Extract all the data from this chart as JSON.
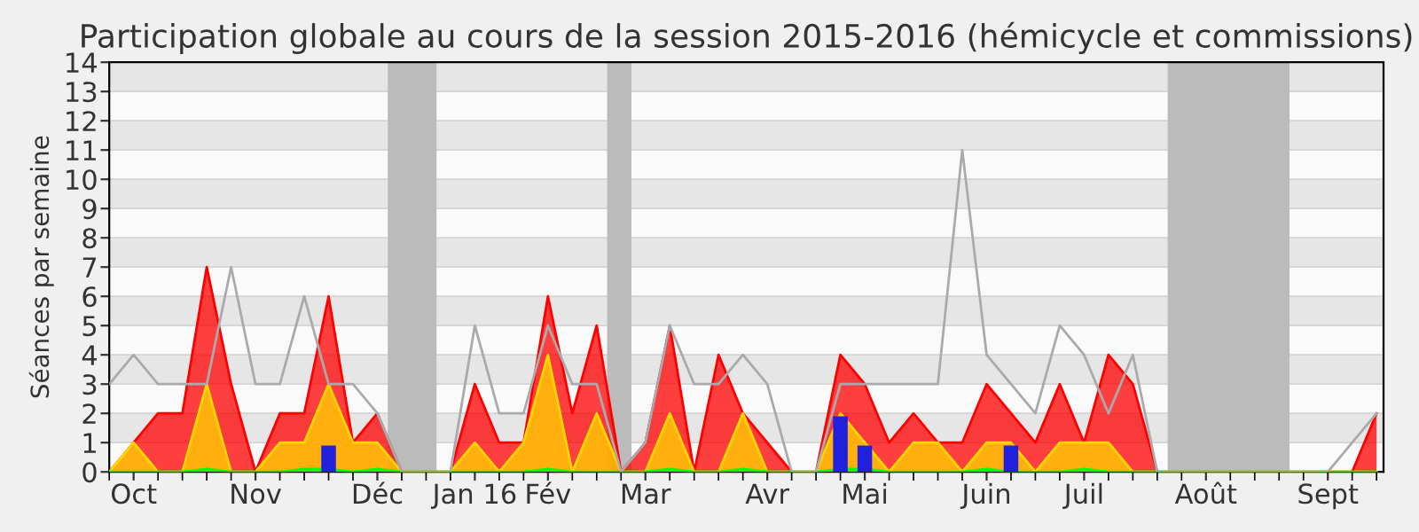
{
  "chart_data": {
    "type": "area",
    "title": "Participation globale au cours de la session 2015-2016 (hémicycle et commissions)",
    "ylabel": "Séances par semaine",
    "x": [
      "2015-10-01",
      "2015-10-08",
      "2015-10-15",
      "2015-10-22",
      "2015-10-29",
      "2015-11-05",
      "2015-11-12",
      "2015-11-19",
      "2015-11-26",
      "2015-12-03",
      "2015-12-10",
      "2015-12-17",
      "2015-12-24",
      "2015-12-31",
      "2016-01-07",
      "2016-01-14",
      "2016-01-21",
      "2016-01-28",
      "2016-02-04",
      "2016-02-11",
      "2016-02-18",
      "2016-02-25",
      "2016-03-03",
      "2016-03-10",
      "2016-03-17",
      "2016-03-24",
      "2016-03-31",
      "2016-04-07",
      "2016-04-14",
      "2016-04-21",
      "2016-04-28",
      "2016-05-05",
      "2016-05-12",
      "2016-05-19",
      "2016-05-26",
      "2016-06-02",
      "2016-06-09",
      "2016-06-16",
      "2016-06-23",
      "2016-06-30",
      "2016-07-07",
      "2016-07-14",
      "2016-07-21",
      "2016-07-28",
      "2016-08-04",
      "2016-08-11",
      "2016-08-18",
      "2016-08-25",
      "2016-09-01",
      "2016-09-08",
      "2016-09-15",
      "2016-09-22",
      "2016-09-29"
    ],
    "xlim": [
      "2015-10-01",
      "2016-10-01"
    ],
    "xticks": [
      {
        "value": "2015-10-08",
        "label": "Oct"
      },
      {
        "value": "2015-11-12",
        "label": "Nov"
      },
      {
        "value": "2015-12-17",
        "label": "Déc"
      },
      {
        "value": "2016-01-14",
        "label": "Jan 16"
      },
      {
        "value": "2016-02-04",
        "label": "Fév"
      },
      {
        "value": "2016-03-03",
        "label": "Mar"
      },
      {
        "value": "2016-04-07",
        "label": "Avr"
      },
      {
        "value": "2016-05-05",
        "label": "Mai"
      },
      {
        "value": "2016-06-09",
        "label": "Juin"
      },
      {
        "value": "2016-07-07",
        "label": "Juil"
      },
      {
        "value": "2016-08-11",
        "label": "Août"
      },
      {
        "value": "2016-09-15",
        "label": "Sept"
      }
    ],
    "ylim": [
      0,
      14
    ],
    "yticks": [
      0,
      1,
      2,
      3,
      4,
      5,
      6,
      7,
      8,
      9,
      10,
      11,
      12,
      13,
      14
    ],
    "grid": "y",
    "bands": [
      {
        "axis": "x",
        "from": "2015-12-20",
        "to": "2016-01-03",
        "color": "#bbbbbb"
      },
      {
        "axis": "x",
        "from": "2016-02-21",
        "to": "2016-02-28",
        "color": "#bbbbbb"
      },
      {
        "axis": "x",
        "from": "2016-07-31",
        "to": "2016-09-04",
        "color": "#bbbbbb"
      }
    ],
    "series": [
      {
        "color": "#ff0000",
        "values": [
          0,
          1,
          2,
          2,
          7,
          3,
          0,
          2,
          2,
          6,
          1,
          2,
          0,
          0,
          0,
          3,
          1,
          1,
          6,
          2,
          5,
          0,
          1,
          5,
          0,
          4,
          2,
          1,
          0,
          0,
          4,
          3,
          1,
          2,
          1,
          1,
          3,
          2,
          1,
          3,
          1,
          4,
          3,
          0,
          0,
          0,
          0,
          0,
          0,
          0,
          0,
          0,
          2
        ]
      },
      {
        "color": "#ffd700",
        "values": [
          0,
          1,
          0,
          0,
          3,
          0,
          0,
          1,
          1,
          3,
          1,
          1,
          0,
          0,
          0,
          1,
          0,
          1,
          4,
          0,
          2,
          0,
          0,
          2,
          0,
          0,
          2,
          0,
          0,
          0,
          2,
          1,
          0,
          1,
          1,
          0,
          1,
          1,
          0,
          1,
          1,
          1,
          0,
          0,
          0,
          0,
          0,
          0,
          0,
          0,
          0,
          0,
          0
        ]
      },
      {
        "color": "#00ff00",
        "values": [
          0,
          0,
          0,
          0,
          0.1,
          0,
          0,
          0,
          0.1,
          0.1,
          0,
          0.1,
          0,
          0,
          0,
          0,
          0,
          0,
          0.1,
          0,
          0,
          0,
          0,
          0.1,
          0,
          0,
          0.1,
          0,
          0,
          0,
          0.1,
          0.1,
          0,
          0,
          0,
          0,
          0.1,
          0,
          0,
          0,
          0.1,
          0,
          0,
          0,
          0,
          0,
          0,
          0,
          0,
          0,
          0,
          0,
          0
        ]
      },
      {
        "type": "bar",
        "color": "#2020dd",
        "values": [
          null,
          null,
          null,
          null,
          null,
          null,
          null,
          null,
          null,
          0.9,
          null,
          null,
          null,
          null,
          null,
          null,
          null,
          null,
          null,
          null,
          null,
          null,
          null,
          null,
          null,
          null,
          null,
          null,
          null,
          null,
          1.9,
          0.9,
          null,
          null,
          null,
          null,
          null,
          0.9,
          null,
          null,
          null,
          null,
          null,
          null,
          null,
          null,
          null,
          null,
          null,
          null,
          null,
          null,
          null
        ]
      },
      {
        "type": "line",
        "color": "#aaaaaa",
        "values": [
          3,
          4,
          3,
          3,
          3,
          7,
          3,
          3,
          6,
          3,
          3,
          2,
          0,
          0,
          0,
          5,
          2,
          2,
          5,
          3,
          3,
          0,
          1,
          5,
          3,
          3,
          4,
          3,
          0,
          0,
          3,
          3,
          3,
          3,
          3,
          11,
          4,
          3,
          2,
          5,
          4,
          2,
          4,
          0,
          0,
          0,
          0,
          0,
          0,
          0,
          0,
          1,
          2
        ]
      }
    ]
  }
}
